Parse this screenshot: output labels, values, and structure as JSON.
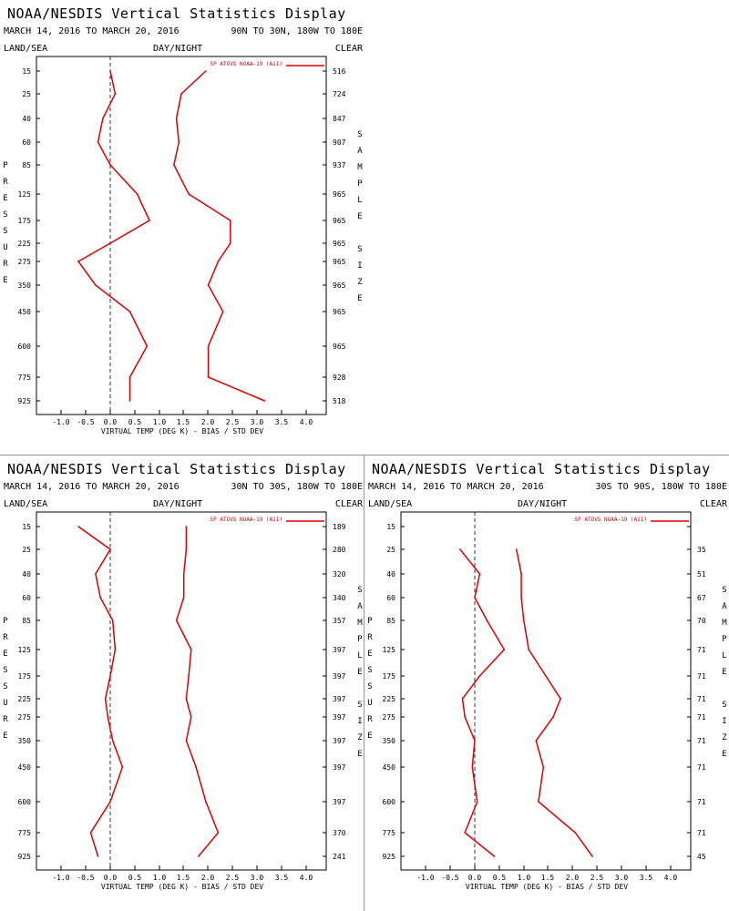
{
  "common": {
    "title": "NOAA/NESDIS Vertical Statistics Display",
    "dates": "MARCH 14, 2016 TO MARCH 20, 2016",
    "land_sea": "LAND/SEA",
    "day_night": "DAY/NIGHT",
    "clear": "CLEAR",
    "left_axis_label": "PRESSURE",
    "right_axis_label": "SAMPLE SIZE",
    "legend_label": "SP ATOVS NOAA-19 (A11)",
    "line_color": "#dd0000"
  },
  "panels": [
    {
      "region": "90N TO 30N, 180W TO 180E"
    },
    {
      "region": "30N TO 30S, 180W TO 180E"
    },
    {
      "region": "30S TO 90S, 180W TO 180E"
    }
  ],
  "chart_data": [
    {
      "type": "line",
      "title": "NOAA/NESDIS Vertical Statistics Display",
      "xlabel": "VIRTUAL TEMP (DEG K) - BIAS / STD DEV",
      "ylabel": "PRESSURE",
      "xlim": [
        -1.5,
        4.5
      ],
      "x_ticks": [
        "-1.0",
        "-0.5",
        "0.0",
        "0.5",
        "1.0",
        "1.5",
        "2.0",
        "2.5",
        "3.0",
        "3.5",
        "4.0"
      ],
      "pressure_levels": [
        "15",
        "25",
        "40",
        "60",
        "85",
        "125",
        "175",
        "225",
        "275",
        "350",
        "450",
        "600",
        "775",
        "925"
      ],
      "sample_size": [
        "516",
        "724",
        "847",
        "907",
        "937",
        "965",
        "965",
        "965",
        "965",
        "965",
        "965",
        "965",
        "928",
        "518"
      ],
      "series": [
        {
          "name": "SP ATOVS NOAA-19 (A11)",
          "kind": "bias",
          "values": [
            0.0,
            0.1,
            -0.15,
            -0.25,
            0.0,
            0.55,
            0.8,
            0.0,
            -0.65,
            -0.3,
            0.4,
            0.75,
            0.4,
            0.4
          ]
        },
        {
          "name": "SP ATOVS NOAA-19 (A11)",
          "kind": "std_dev",
          "values": [
            1.95,
            1.45,
            1.35,
            1.4,
            1.3,
            1.6,
            2.45,
            2.45,
            2.2,
            2.0,
            2.3,
            2.0,
            2.0,
            3.15
          ]
        }
      ]
    },
    {
      "type": "line",
      "title": "NOAA/NESDIS Vertical Statistics Display",
      "xlabel": "VIRTUAL TEMP (DEG K) - BIAS / STD DEV",
      "ylabel": "PRESSURE",
      "xlim": [
        -1.5,
        4.5
      ],
      "x_ticks": [
        "-1.0",
        "-0.5",
        "0.0",
        "0.5",
        "1.0",
        "1.5",
        "2.0",
        "2.5",
        "3.0",
        "3.5",
        "4.0"
      ],
      "pressure_levels": [
        "15",
        "25",
        "40",
        "60",
        "85",
        "125",
        "175",
        "225",
        "275",
        "350",
        "450",
        "600",
        "775",
        "925"
      ],
      "sample_size": [
        "189",
        "280",
        "320",
        "340",
        "357",
        "397",
        "397",
        "397",
        "397",
        "397",
        "397",
        "397",
        "370",
        "241"
      ],
      "series": [
        {
          "name": "SP ATOVS NOAA-19 (A11)",
          "kind": "bias",
          "values": [
            -0.65,
            0.0,
            -0.3,
            -0.2,
            0.05,
            0.1,
            0.0,
            -0.1,
            -0.05,
            0.05,
            0.25,
            0.0,
            -0.4,
            -0.25
          ]
        },
        {
          "name": "SP ATOVS NOAA-19 (A11)",
          "kind": "std_dev",
          "values": [
            1.55,
            1.55,
            1.5,
            1.5,
            1.35,
            1.65,
            1.6,
            1.55,
            1.65,
            1.55,
            1.75,
            1.95,
            2.2,
            1.8
          ]
        }
      ]
    },
    {
      "type": "line",
      "title": "NOAA/NESDIS Vertical Statistics Display",
      "xlabel": "VIRTUAL TEMP (DEG K) - BIAS / STD DEV",
      "ylabel": "PRESSURE",
      "xlim": [
        -1.5,
        4.5
      ],
      "x_ticks": [
        "-1.0",
        "-0.5",
        "0.0",
        "0.5",
        "1.0",
        "1.5",
        "2.0",
        "2.5",
        "3.0",
        "3.5",
        "4.0"
      ],
      "pressure_levels": [
        "15",
        "25",
        "40",
        "60",
        "85",
        "125",
        "175",
        "225",
        "275",
        "350",
        "450",
        "600",
        "775",
        "925"
      ],
      "sample_size": [
        "",
        "35",
        "51",
        "67",
        "70",
        "71",
        "71",
        "71",
        "71",
        "71",
        "71",
        "71",
        "71",
        "45"
      ],
      "series": [
        {
          "name": "SP ATOVS NOAA-19 (A11)",
          "kind": "bias",
          "values": [
            null,
            -0.3,
            0.1,
            0.0,
            0.25,
            0.6,
            0.1,
            -0.25,
            -0.2,
            0.0,
            -0.05,
            0.05,
            -0.2,
            0.4
          ]
        },
        {
          "name": "SP ATOVS NOAA-19 (A11)",
          "kind": "std_dev",
          "values": [
            null,
            0.85,
            0.95,
            0.95,
            1.0,
            1.1,
            1.45,
            1.75,
            1.6,
            1.25,
            1.4,
            1.3,
            2.05,
            2.4
          ]
        }
      ]
    }
  ]
}
